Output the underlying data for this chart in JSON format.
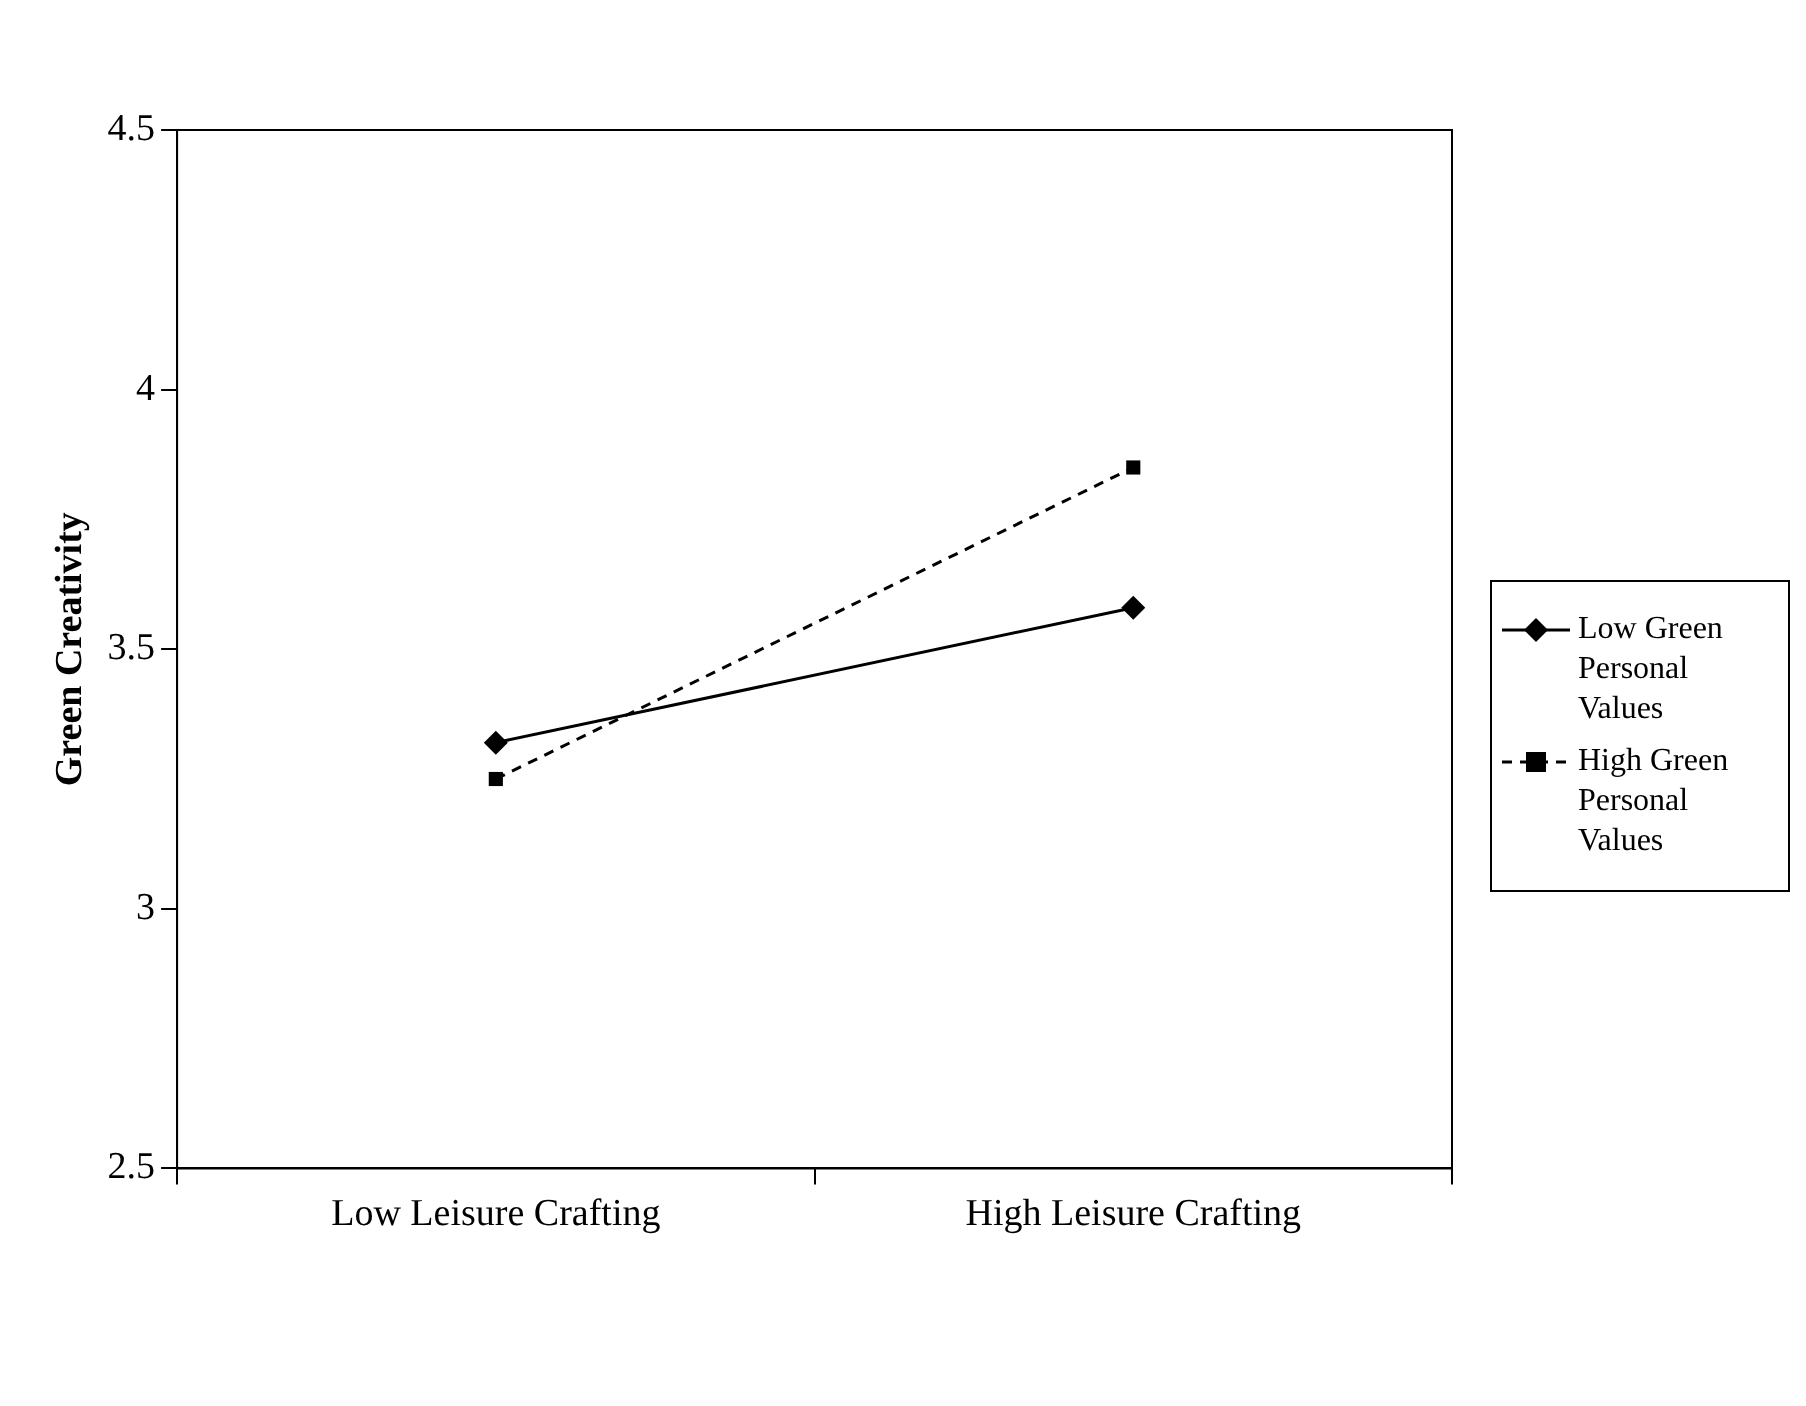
{
  "chart_data": {
    "type": "line",
    "ylabel": "Green Creativity",
    "categories": [
      "Low Leisure Crafting",
      "High Leisure Crafting"
    ],
    "series": [
      {
        "name": "Low Green Personal Values",
        "color": "#000000",
        "values": [
          3.32,
          3.58
        ],
        "marker": "diamond",
        "line_style": "solid"
      },
      {
        "name": "High Green Personal Values",
        "color": "#000000",
        "values": [
          3.25,
          3.85
        ],
        "marker": "square",
        "line_style": "dashed"
      }
    ],
    "ylim": [
      2.5,
      4.5
    ],
    "yticks": [
      2.5,
      3,
      3.5,
      4,
      4.5
    ],
    "grid": false,
    "legend": "right"
  }
}
